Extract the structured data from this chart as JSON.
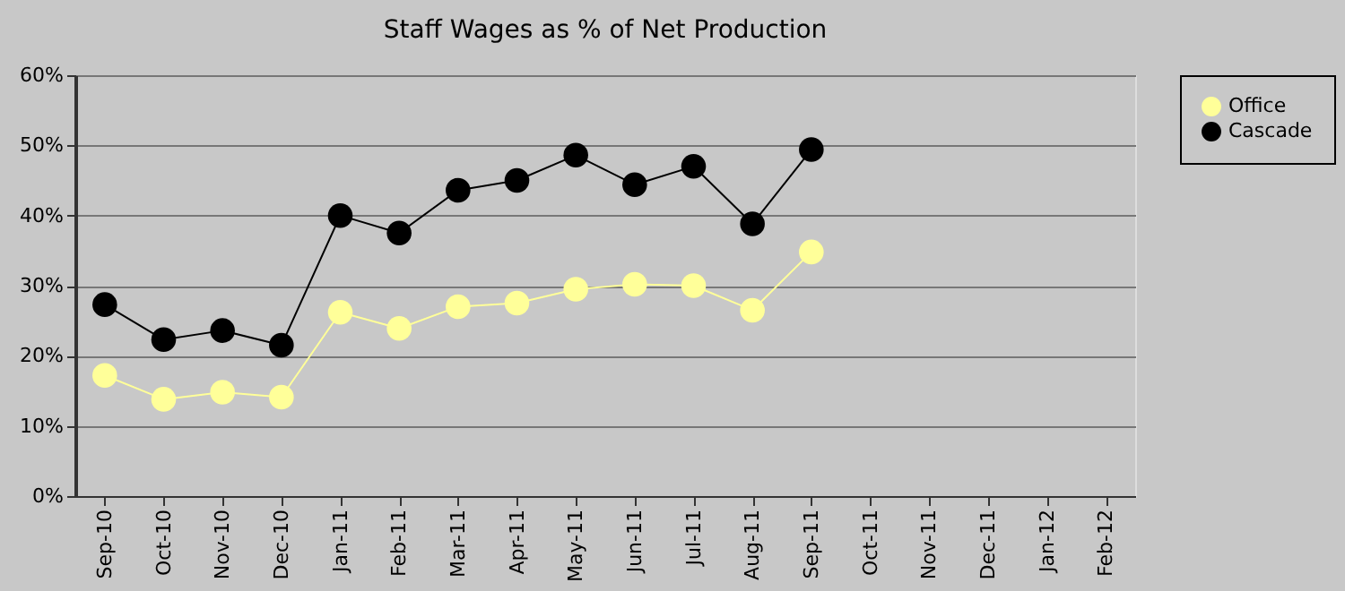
{
  "chart_data": {
    "type": "line",
    "title": "Staff Wages as % of Net Production",
    "categories": [
      "Sep-10",
      "Oct-10",
      "Nov-10",
      "Dec-10",
      "Jan-11",
      "Feb-11",
      "Mar-11",
      "Apr-11",
      "May-11",
      "Jun-11",
      "Jul-11",
      "Aug-11",
      "Sep-11",
      "Oct-11",
      "Nov-11",
      "Dec-11",
      "Jan-12",
      "Feb-12"
    ],
    "series": [
      {
        "name": "Office",
        "color": "#ffff99",
        "values": [
          17.2,
          13.8,
          14.8,
          14.1,
          26.2,
          23.9,
          27.0,
          27.5,
          29.5,
          30.2,
          30.0,
          26.5,
          34.8,
          null,
          null,
          null,
          null,
          null
        ]
      },
      {
        "name": "Cascade",
        "color": "#000000",
        "values": [
          27.3,
          22.3,
          23.6,
          21.5,
          40.0,
          37.5,
          43.6,
          45.0,
          48.6,
          44.4,
          47.0,
          38.8,
          49.4,
          null,
          null,
          null,
          null,
          null
        ]
      }
    ],
    "ylim": [
      0,
      60
    ],
    "yticks": [
      {
        "value": 0,
        "label": "0%"
      },
      {
        "value": 10,
        "label": "10%"
      },
      {
        "value": 20,
        "label": "20%"
      },
      {
        "value": 30,
        "label": "30%"
      },
      {
        "value": 40,
        "label": "40%"
      },
      {
        "value": 50,
        "label": "50%"
      },
      {
        "value": 60,
        "label": "60%"
      }
    ],
    "grid": "y",
    "legend": "right",
    "marker": "circle",
    "line_style": "solid"
  }
}
